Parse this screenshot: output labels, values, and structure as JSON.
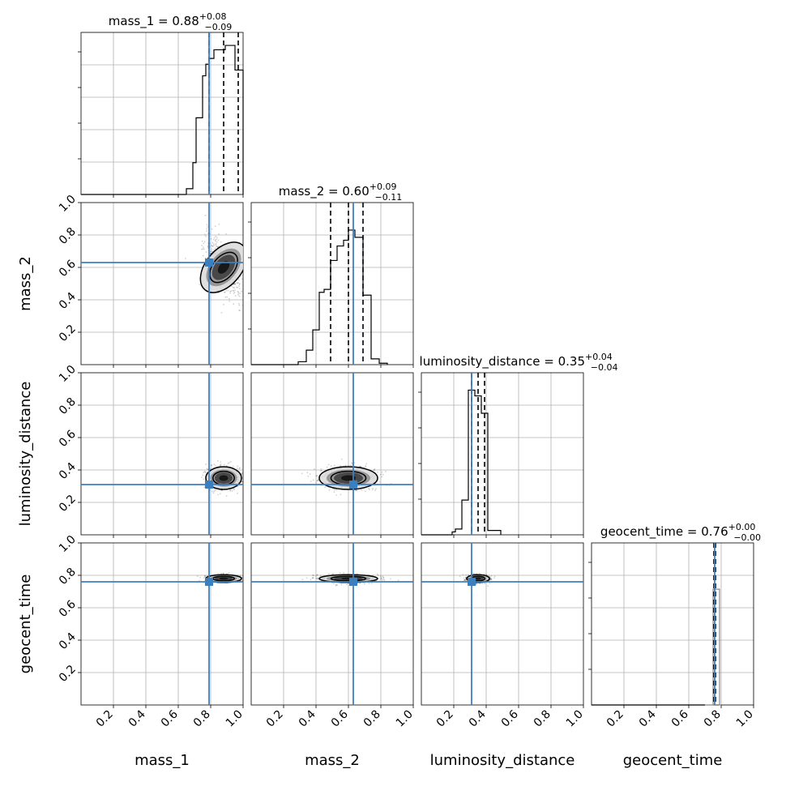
{
  "chart_data": {
    "type": "corner",
    "parameters": [
      "mass_1",
      "mass_2",
      "luminosity_distance",
      "geocent_time"
    ],
    "axis_range": [
      0,
      1
    ],
    "tick_labels": [
      "0.2",
      "0.4",
      "0.6",
      "0.8",
      "1.0"
    ],
    "tick_values": [
      0.2,
      0.4,
      0.6,
      0.8,
      1.0
    ],
    "grid": true,
    "truth_color": "#3c7fbf",
    "truths": [
      0.79,
      0.63,
      0.31,
      0.76
    ],
    "titles": [
      {
        "name": "mass_1",
        "median": "0.88",
        "plus": "+0.08",
        "minus": "−0.09"
      },
      {
        "name": "mass_2",
        "median": "0.60",
        "plus": "+0.09",
        "minus": "−0.11"
      },
      {
        "name": "luminosity_distance",
        "median": "0.35",
        "plus": "+0.04",
        "minus": "−0.04"
      },
      {
        "name": "geocent_time",
        "median": "0.76",
        "plus": "+0.00",
        "minus": "−0.00"
      }
    ],
    "quantiles": [
      [
        0.79,
        0.88,
        0.97
      ],
      [
        0.49,
        0.6,
        0.69
      ],
      [
        0.31,
        0.35,
        0.39
      ],
      [
        0.755,
        0.76,
        0.765
      ]
    ],
    "histograms": [
      {
        "edges": [
          0.65,
          0.69,
          0.71,
          0.75,
          0.77,
          0.79,
          0.82,
          0.85,
          0.89,
          0.93,
          0.95,
          1.0
        ],
        "counts": [
          0.04,
          0.22,
          0.53,
          0.82,
          0.9,
          0.94,
          1.0,
          1.0,
          1.03,
          1.03,
          0.86
        ]
      },
      {
        "edges": [
          0.29,
          0.34,
          0.38,
          0.42,
          0.45,
          0.49,
          0.53,
          0.57,
          0.6,
          0.64,
          0.69,
          0.74,
          0.79,
          0.84
        ],
        "counts": [
          0.02,
          0.1,
          0.24,
          0.5,
          0.52,
          0.72,
          0.82,
          0.86,
          0.93,
          0.88,
          0.48,
          0.04,
          0.01
        ]
      },
      {
        "edges": [
          0.19,
          0.21,
          0.25,
          0.29,
          0.33,
          0.37,
          0.41,
          0.49
        ],
        "counts": [
          0.02,
          0.04,
          0.24,
          1.0,
          0.96,
          0.84,
          0.03
        ]
      },
      {
        "edges": [
          0.7,
          0.75,
          0.76,
          0.79,
          0.8
        ],
        "counts": [
          0.0,
          0.8,
          0.8,
          0.0
        ]
      }
    ]
  }
}
